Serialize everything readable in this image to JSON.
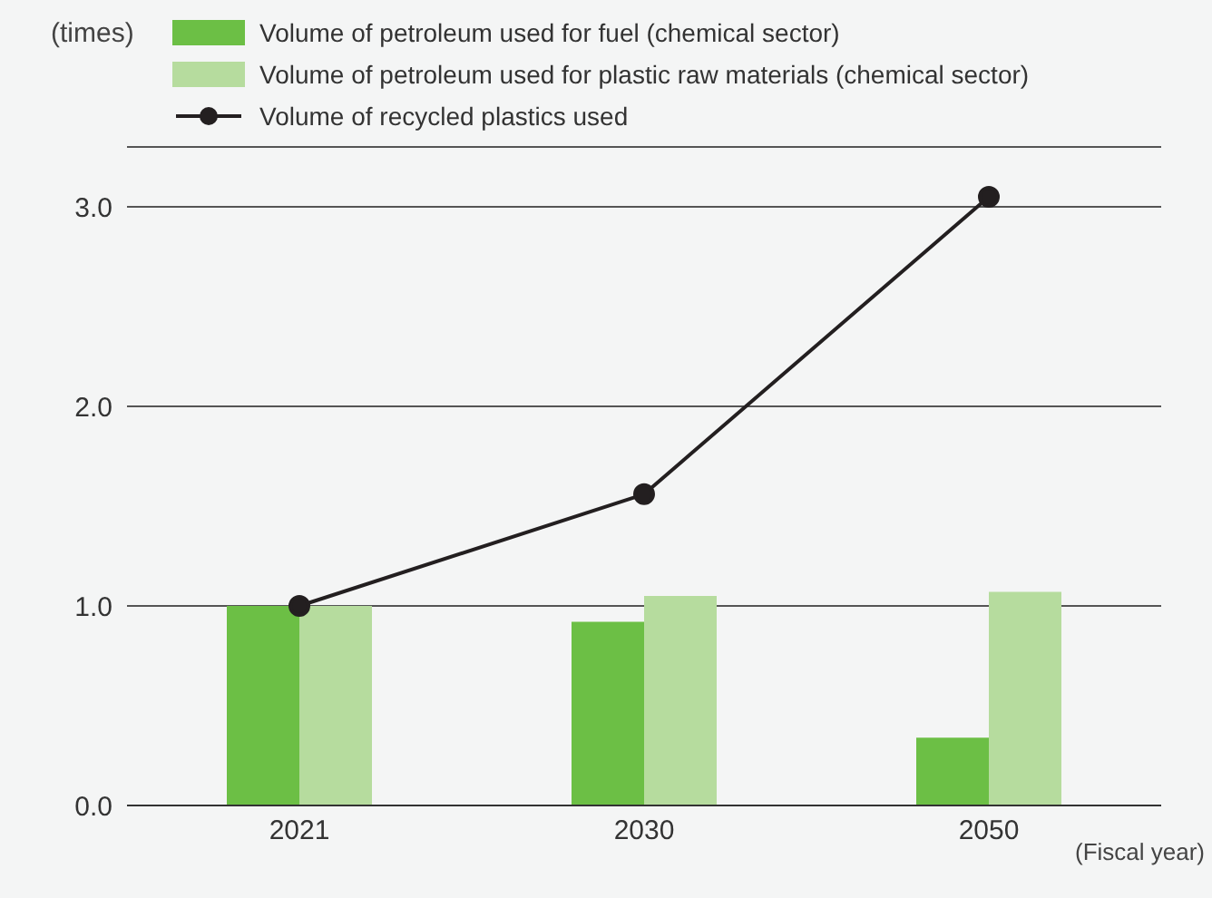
{
  "chart_data": {
    "type": "bar",
    "ylabel": "(times)",
    "xlabel": "(Fiscal year)",
    "categories": [
      "2021",
      "2030",
      "2050"
    ],
    "series": [
      {
        "name": "Volume of petroleum used for fuel (chemical sector)",
        "color": "#6cbf45",
        "values": [
          1.0,
          0.92,
          0.34
        ]
      },
      {
        "name": "Volume of petroleum used for plastic raw materials (chemical sector)",
        "color": "#b6dc9e",
        "values": [
          1.0,
          1.05,
          1.07
        ]
      },
      {
        "name": "Volume of recycled plastics used",
        "type": "line",
        "color": "#231f20",
        "marker": "circle",
        "values": [
          1.0,
          1.56,
          3.05
        ]
      }
    ],
    "ylim": [
      0,
      3.3
    ],
    "yticks": [
      {
        "value": 0,
        "label": "0.0"
      },
      {
        "value": 1,
        "label": "1.0"
      },
      {
        "value": 2,
        "label": "2.0"
      },
      {
        "value": 3,
        "label": "3.0"
      }
    ],
    "grid": "y",
    "legend": "top"
  }
}
